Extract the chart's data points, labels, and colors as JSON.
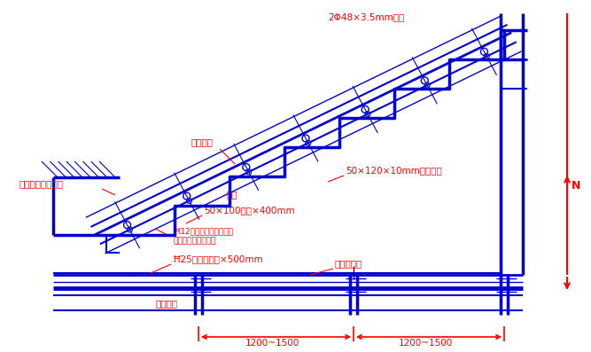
{
  "bg_color": "#ffffff",
  "blue": "#0000CD",
  "red": "#FF0000",
  "fig_w": 6.67,
  "fig_h": 3.97,
  "dpi": 100,
  "ann_label1": "2Φ48×3.5mm鈢管",
  "ann_label2": "七层模板",
  "ann_label3": "50×120×10mm鈢模卖片",
  "ann_label4": "起模图（成平台）",
  "ann_label5": "模组",
  "ann_label6": "50×100木方×400mm",
  "ann_label7": "Ħ12对拉蚂耕，间距一步",
  "ann_label8": "设一层，横向设两道",
  "ann_label9": "Ħ25防滑鈢钕头×500mm",
  "ann_label10": "鈢管水平杆",
  "ann_label11": "鈢管立杆",
  "ann_label12": "1200~1500",
  "ann_label13": "1200~1500"
}
